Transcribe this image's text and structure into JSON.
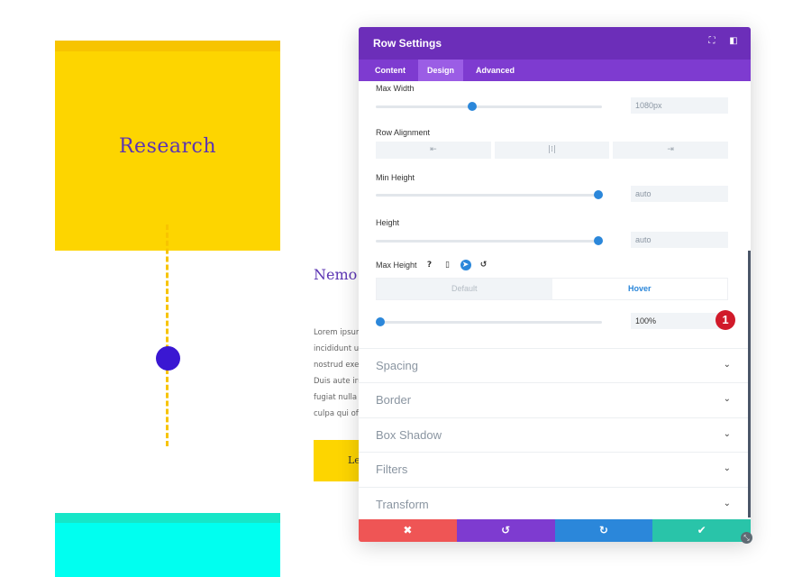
{
  "background": {
    "card_title": "Research",
    "heading": "Nemo asperr",
    "body_lines": [
      "Lorem ipsum",
      "incididunt ut",
      "nostrud exer",
      "Duis aute iru",
      "fugiat nulla p",
      "culpa qui offi"
    ],
    "button_text": "Le"
  },
  "modal": {
    "title": "Row Settings",
    "tabs": [
      "Content",
      "Design",
      "Advanced"
    ],
    "active_tab": "Design",
    "max_width": {
      "label": "Max Width",
      "value": "1080px",
      "level_percent": 42
    },
    "row_alignment": {
      "label": "Row Alignment",
      "options": [
        "left",
        "center",
        "right"
      ]
    },
    "min_height": {
      "label": "Min Height",
      "value": "auto",
      "level_percent": 100
    },
    "height": {
      "label": "Height",
      "value": "auto",
      "level_percent": 100
    },
    "max_height": {
      "label": "Max Height",
      "help_icon": "?",
      "state_default": "Default",
      "state_hover": "Hover",
      "value": "100%",
      "level_percent": 0
    },
    "badge": "1",
    "sections": [
      "Spacing",
      "Border",
      "Box Shadow",
      "Filters",
      "Transform"
    ]
  },
  "colors": {
    "header": "#6c2eb9",
    "tabs": "#7e3bd0",
    "accent": "#2b87da",
    "cancel": "#ef5555",
    "save": "#29c4a9",
    "badge": "#d11a2a"
  }
}
